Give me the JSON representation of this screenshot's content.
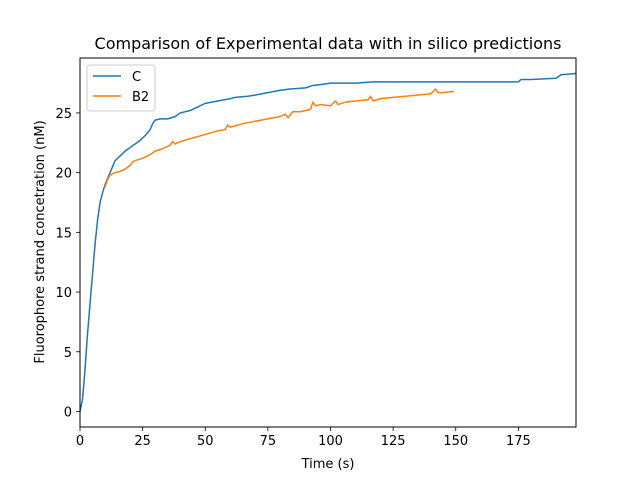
{
  "chart_data": {
    "type": "line",
    "title": "Comparison of Experimental data with in silico predictions",
    "xlabel": "Time (s)",
    "ylabel": "Fluorophore strand concetration (nM)",
    "xlim": [
      0,
      198
    ],
    "ylim": [
      -1.3,
      29.6
    ],
    "xticks": [
      0,
      25,
      50,
      75,
      100,
      125,
      150,
      175
    ],
    "yticks": [
      0,
      5,
      10,
      15,
      20,
      25
    ],
    "grid": false,
    "legend_position": "top-left",
    "series": [
      {
        "name": "C",
        "color": "#1f77b4",
        "x": [
          0,
          1,
          2,
          3,
          4,
          5,
          6,
          7,
          8,
          9,
          10,
          11,
          12,
          13,
          14,
          15,
          16,
          18,
          20,
          22,
          24,
          26,
          28,
          29,
          30,
          32,
          35,
          38,
          40,
          44,
          47,
          50,
          55,
          60,
          62,
          67,
          70,
          75,
          80,
          84,
          90,
          93,
          97,
          100,
          105,
          110,
          117,
          120,
          130,
          150,
          175,
          176,
          180,
          190,
          192,
          198
        ],
        "y": [
          0,
          1,
          3.5,
          6.5,
          9,
          11.5,
          14,
          16,
          17.5,
          18.3,
          19,
          19.5,
          20,
          20.5,
          21,
          21.2,
          21.4,
          21.8,
          22.1,
          22.4,
          22.7,
          23.1,
          23.6,
          24.1,
          24.4,
          24.5,
          24.5,
          24.7,
          25,
          25.2,
          25.5,
          25.8,
          26,
          26.2,
          26.3,
          26.4,
          26.5,
          26.7,
          26.9,
          27,
          27.1,
          27.3,
          27.4,
          27.5,
          27.5,
          27.5,
          27.6,
          27.6,
          27.6,
          27.6,
          27.6,
          27.8,
          27.8,
          27.9,
          28.2,
          28.3
        ]
      },
      {
        "name": "B2",
        "color": "#ff7f0e",
        "x": [
          10,
          11,
          12,
          13,
          14,
          16,
          18,
          20,
          21,
          22,
          25,
          28,
          30,
          33,
          36,
          37,
          38,
          40,
          45,
          50,
          55,
          58,
          59,
          60,
          65,
          70,
          75,
          80,
          82,
          83,
          85,
          88,
          90,
          92,
          93,
          94,
          96,
          100,
          102,
          103,
          106,
          110,
          115,
          116,
          117,
          120,
          125,
          130,
          135,
          140,
          142,
          143,
          145,
          149
        ],
        "y": [
          18.8,
          19.4,
          19.8,
          19.9,
          20,
          20.1,
          20.3,
          20.6,
          20.9,
          21,
          21.2,
          21.5,
          21.8,
          22,
          22.3,
          22.6,
          22.4,
          22.6,
          22.9,
          23.2,
          23.5,
          23.6,
          24,
          23.8,
          24.1,
          24.3,
          24.5,
          24.7,
          24.9,
          24.6,
          25.1,
          25.1,
          25.2,
          25.3,
          25.9,
          25.6,
          25.7,
          25.6,
          26,
          25.7,
          25.9,
          26,
          26.1,
          26.4,
          26,
          26.2,
          26.3,
          26.4,
          26.5,
          26.6,
          27,
          26.7,
          26.7,
          26.8
        ]
      }
    ]
  }
}
